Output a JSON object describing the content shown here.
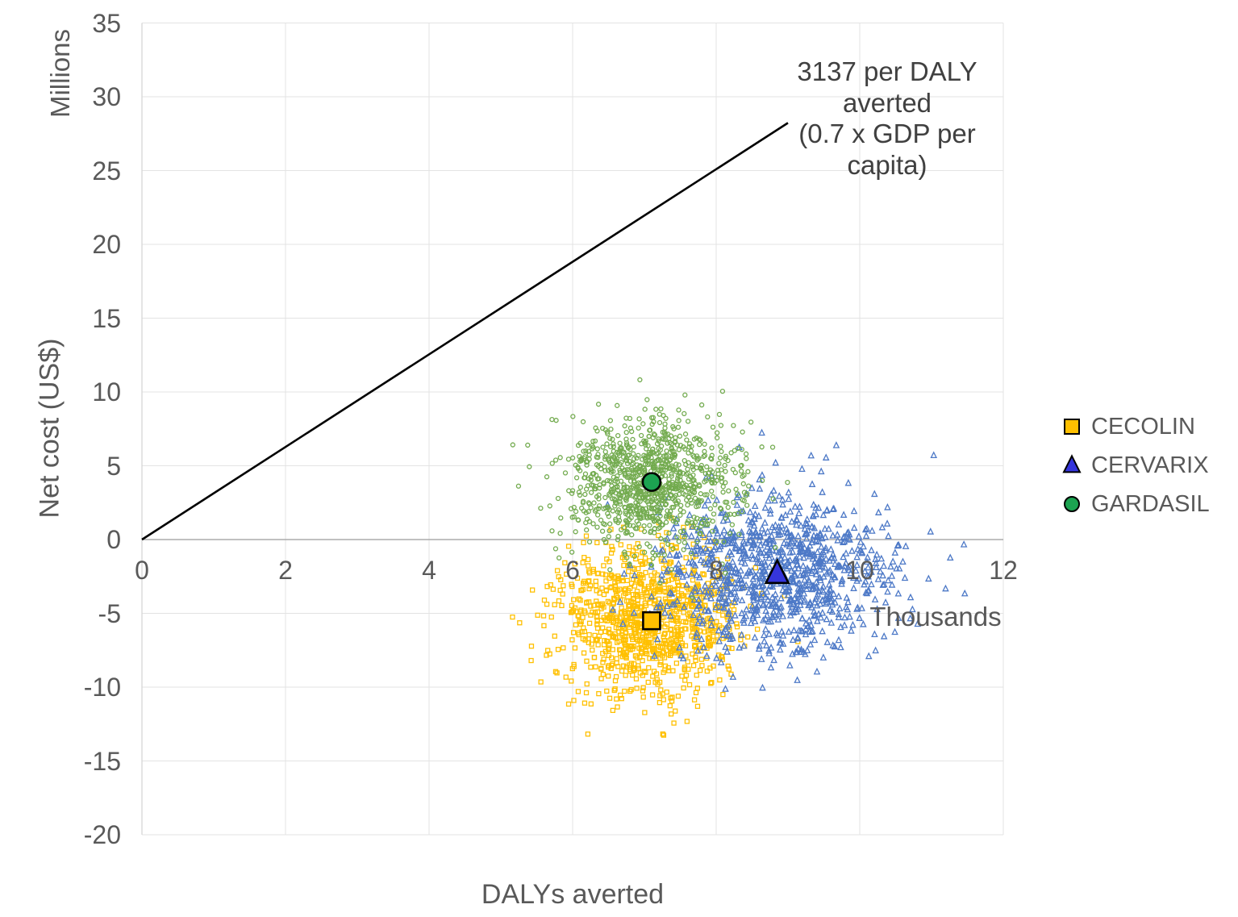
{
  "chart_data": {
    "type": "scatter",
    "title": "",
    "xlabel": "DALYs averted",
    "ylabel": "Net cost (US$)",
    "x_unit_label": "Thousands",
    "y_unit_label": "Millions",
    "xlim": [
      0,
      12
    ],
    "ylim": [
      -20,
      35
    ],
    "x_ticks": [
      0,
      2,
      4,
      6,
      8,
      10,
      12
    ],
    "y_ticks": [
      35,
      30,
      25,
      20,
      15,
      10,
      5,
      0,
      -5,
      -10,
      -15,
      -20
    ],
    "grid": true,
    "legend_position": "right",
    "annotation": {
      "lines": [
        "3137 per DALY",
        "averted",
        "(0.7 x GDP per",
        "capita)"
      ],
      "full_text": "3137 per DALY averted (0.7 x GDP per capita)"
    },
    "threshold_line": {
      "slope_usd_per_daly": 3137,
      "x_start_thousands": 0,
      "y_start_millions": 0,
      "x_end_thousands": 9.0,
      "y_end_millions": 28.23
    },
    "series": [
      {
        "id": "cecolin",
        "name": "CECOLIN",
        "marker": "square",
        "point_color": "#FFC000",
        "mean_color": "#FFC000",
        "mean": {
          "x_thousands": 7.1,
          "y_millions": -5.5
        },
        "cloud": {
          "n": 1000,
          "sd_x": 0.63,
          "sd_y": 2.55,
          "seed": 101
        }
      },
      {
        "id": "cervarix",
        "name": "CERVARIX",
        "marker": "triangle",
        "point_color": "#4D79C7",
        "mean_color": "#3535DC",
        "mean": {
          "x_thousands": 8.85,
          "y_millions": -2.3
        },
        "cloud": {
          "n": 1000,
          "sd_x": 0.78,
          "sd_y": 2.7,
          "seed": 202
        }
      },
      {
        "id": "gardasil",
        "name": "GARDASIL",
        "marker": "circle",
        "point_color": "#73AB4F",
        "mean_color": "#1CA351",
        "mean": {
          "x_thousands": 7.1,
          "y_millions": 3.9
        },
        "cloud": {
          "n": 1000,
          "sd_x": 0.56,
          "sd_y": 2.2,
          "seed": 303
        }
      }
    ],
    "colors": {
      "grid": "#E3E3E3",
      "zero_line": "#ABABAB",
      "axis_line": "#D6D6D6",
      "tick_text": "#595959",
      "annotation_text": "#404040",
      "threshold_line": "#000000"
    }
  },
  "legend": {
    "items": [
      {
        "label": "CECOLIN"
      },
      {
        "label": "CERVARIX"
      },
      {
        "label": "GARDASIL"
      }
    ]
  }
}
